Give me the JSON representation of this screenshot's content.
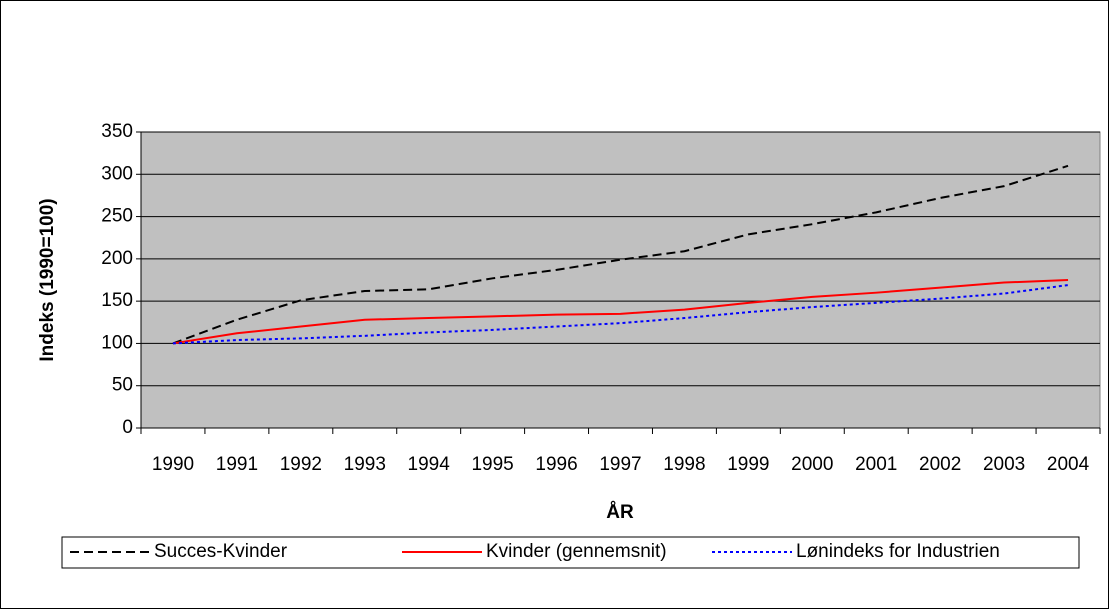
{
  "chart_data": {
    "type": "line",
    "xlabel": "ÅR",
    "ylabel": "Indeks (1990=100)",
    "categories": [
      "1990",
      "1991",
      "1992",
      "1993",
      "1994",
      "1995",
      "1996",
      "1997",
      "1998",
      "1999",
      "2000",
      "2001",
      "2002",
      "2003",
      "2004"
    ],
    "ylim": [
      0,
      350
    ],
    "yticks": [
      0,
      50,
      100,
      150,
      200,
      250,
      300,
      350
    ],
    "grid": true,
    "legend": "bottom",
    "background": "#c0c0c0",
    "series": [
      {
        "name": "Succes-Kvinder",
        "color": "#000000",
        "style": "dashed",
        "values": [
          100,
          128,
          151,
          162,
          164,
          177,
          187,
          199,
          209,
          229,
          241,
          255,
          272,
          286,
          310
        ]
      },
      {
        "name": "Kvinder (gennemsnit)",
        "color": "#ff0000",
        "style": "solid",
        "values": [
          100,
          112,
          120,
          128,
          130,
          132,
          134,
          135,
          140,
          148,
          155,
          160,
          166,
          172,
          175
        ]
      },
      {
        "name": "Lønindeks for Industrien",
        "color": "#0000ff",
        "style": "dotted",
        "values": [
          100,
          104,
          106,
          109,
          113,
          116,
          120,
          124,
          130,
          137,
          143,
          148,
          153,
          159,
          169
        ]
      }
    ]
  }
}
